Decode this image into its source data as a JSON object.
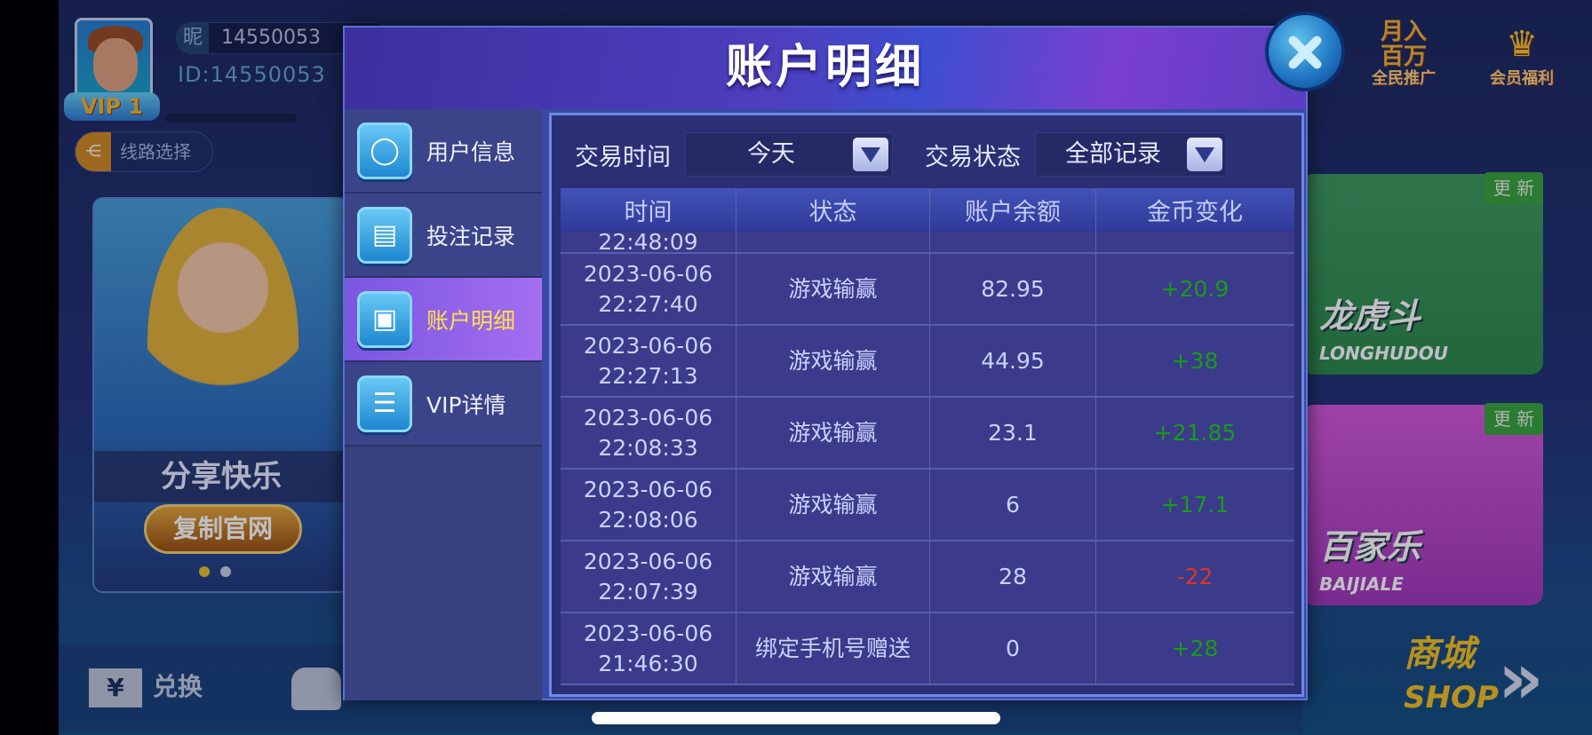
{
  "profile": {
    "nick_prefix": "昵",
    "nickname": "14550053",
    "id_label": "ID:14550053",
    "vip": "VIP 1",
    "route_label": "线路选择"
  },
  "banner": {
    "title": "分享快乐",
    "button": "复制官网"
  },
  "promos": [
    {
      "line1": "月入",
      "line2": "百万",
      "label": "全民推广"
    },
    {
      "label": "会员福利"
    }
  ],
  "games": [
    {
      "title": "龙虎斗",
      "sub": "LONGHUDOU",
      "badge": "更 新"
    },
    {
      "title": "百家乐",
      "sub": "BAIJIALE",
      "badge": "更 新"
    }
  ],
  "bottom": {
    "exchange": "兑换",
    "exchange_icon": "¥",
    "shop_cn": "商城",
    "shop_en": "SHOP"
  },
  "modal": {
    "title": "账户明细",
    "sidebar": [
      {
        "label": "用户信息",
        "icon": "user-icon"
      },
      {
        "label": "投注记录",
        "icon": "list-doc-icon"
      },
      {
        "label": "账户明细",
        "icon": "account-bill-icon",
        "active": true
      },
      {
        "label": "VIP详情",
        "icon": "list-icon"
      }
    ],
    "filters": {
      "time_label": "交易时间",
      "time_value": "今天",
      "status_label": "交易状态",
      "status_value": "全部记录"
    },
    "columns": [
      "时间",
      "状态",
      "账户余额",
      "金币变化"
    ],
    "partial_row_time": "22:48:09",
    "rows": [
      {
        "date": "2023-06-06",
        "time": "22:27:40",
        "status": "游戏输赢",
        "balance": "82.95",
        "change": "+20.9"
      },
      {
        "date": "2023-06-06",
        "time": "22:27:13",
        "status": "游戏输赢",
        "balance": "44.95",
        "change": "+38"
      },
      {
        "date": "2023-06-06",
        "time": "22:08:33",
        "status": "游戏输赢",
        "balance": "23.1",
        "change": "+21.85"
      },
      {
        "date": "2023-06-06",
        "time": "22:08:06",
        "status": "游戏输赢",
        "balance": "6",
        "change": "+17.1"
      },
      {
        "date": "2023-06-06",
        "time": "22:07:39",
        "status": "游戏输赢",
        "balance": "28",
        "change": "-22"
      },
      {
        "date": "2023-06-06",
        "time": "21:46:30",
        "status": "绑定手机号赠送",
        "balance": "0",
        "change": "+28"
      }
    ]
  },
  "colors": {
    "positive": "#1a9b1a",
    "negative": "#d23a2a",
    "active_tab_text": "#ffe04a"
  }
}
